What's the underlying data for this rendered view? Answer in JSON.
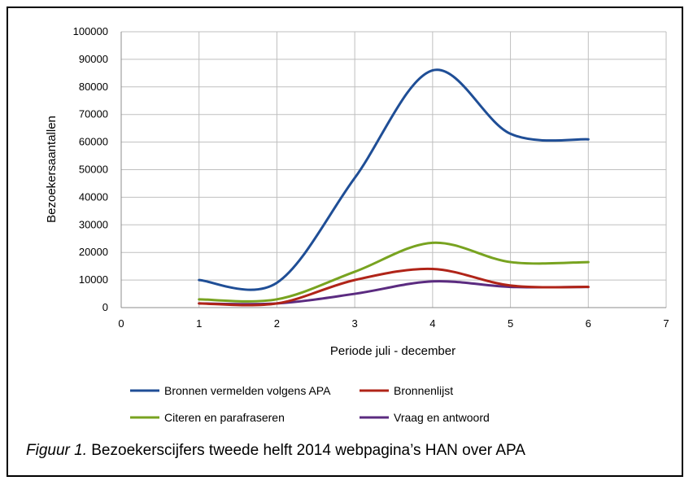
{
  "caption": {
    "label": "Figuur 1.",
    "text": " Bezoekerscijfers tweede helft 2014 webpagina’s HAN over APA"
  },
  "chart_data": {
    "type": "line",
    "xlabel": "Periode juli - december",
    "ylabel": "Bezoekersaantallen",
    "xlim": [
      0,
      7
    ],
    "ylim": [
      0,
      100000
    ],
    "x_ticks": [
      0,
      1,
      2,
      3,
      4,
      5,
      6,
      7
    ],
    "y_ticks": [
      0,
      10000,
      20000,
      30000,
      40000,
      50000,
      60000,
      70000,
      80000,
      90000,
      100000
    ],
    "grid": "both",
    "legend_position": "bottom",
    "x": [
      1,
      2,
      3,
      4,
      5,
      6
    ],
    "series": [
      {
        "name": "Bronnen vermelden volgens APA",
        "color": "#1f4e96",
        "values": [
          10000,
          9000,
          47000,
          86000,
          63000,
          61000
        ]
      },
      {
        "name": "Bronnenlijst",
        "color": "#b02418",
        "values": [
          1500,
          1500,
          10000,
          14000,
          8000,
          7500
        ]
      },
      {
        "name": "Citeren en parafraseren",
        "color": "#78a320",
        "values": [
          3000,
          3000,
          13000,
          23500,
          16500,
          16500
        ]
      },
      {
        "name": "Vraag en antwoord",
        "color": "#5b2b80",
        "values": [
          1500,
          1500,
          5000,
          9500,
          7500,
          7500
        ]
      }
    ]
  }
}
